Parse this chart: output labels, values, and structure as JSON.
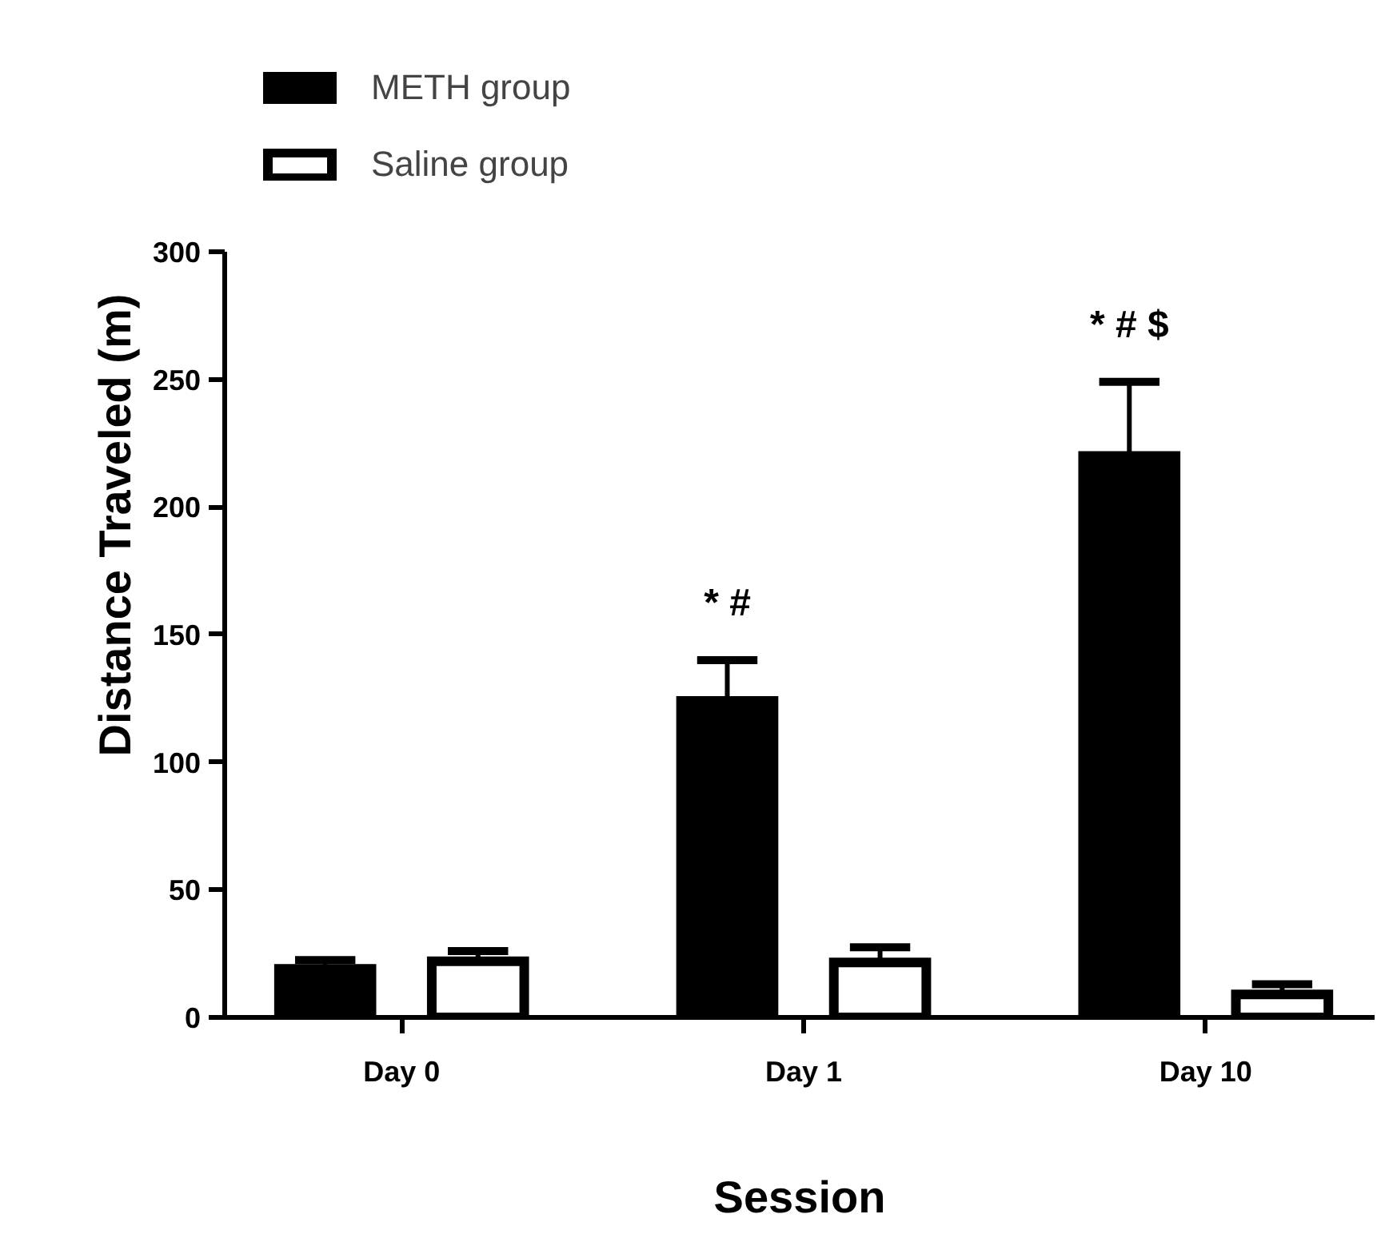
{
  "chart_data": {
    "type": "bar",
    "xlabel": "Session",
    "ylabel": "Distance Traveled (m)",
    "categories": [
      "Day 0",
      "Day 1",
      "Day 10"
    ],
    "series": [
      {
        "name": "METH group",
        "color": "#000000",
        "values": [
          19,
          124,
          220
        ],
        "errors": [
          [
            19,
            22.5
          ],
          [
            124,
            140
          ],
          [
            220,
            249
          ]
        ]
      },
      {
        "name": "Saline group",
        "color": "#ffffff",
        "values": [
          22,
          21.5,
          9
        ],
        "errors": [
          [
            22,
            26
          ],
          [
            21.5,
            27.5
          ],
          [
            9,
            13
          ]
        ]
      }
    ],
    "ylim": [
      0,
      300
    ],
    "yticks": [
      0,
      50,
      100,
      150,
      200,
      250,
      300
    ],
    "grid": false,
    "legend": "top left",
    "annotations": [
      "* #",
      "* # $"
    ]
  }
}
